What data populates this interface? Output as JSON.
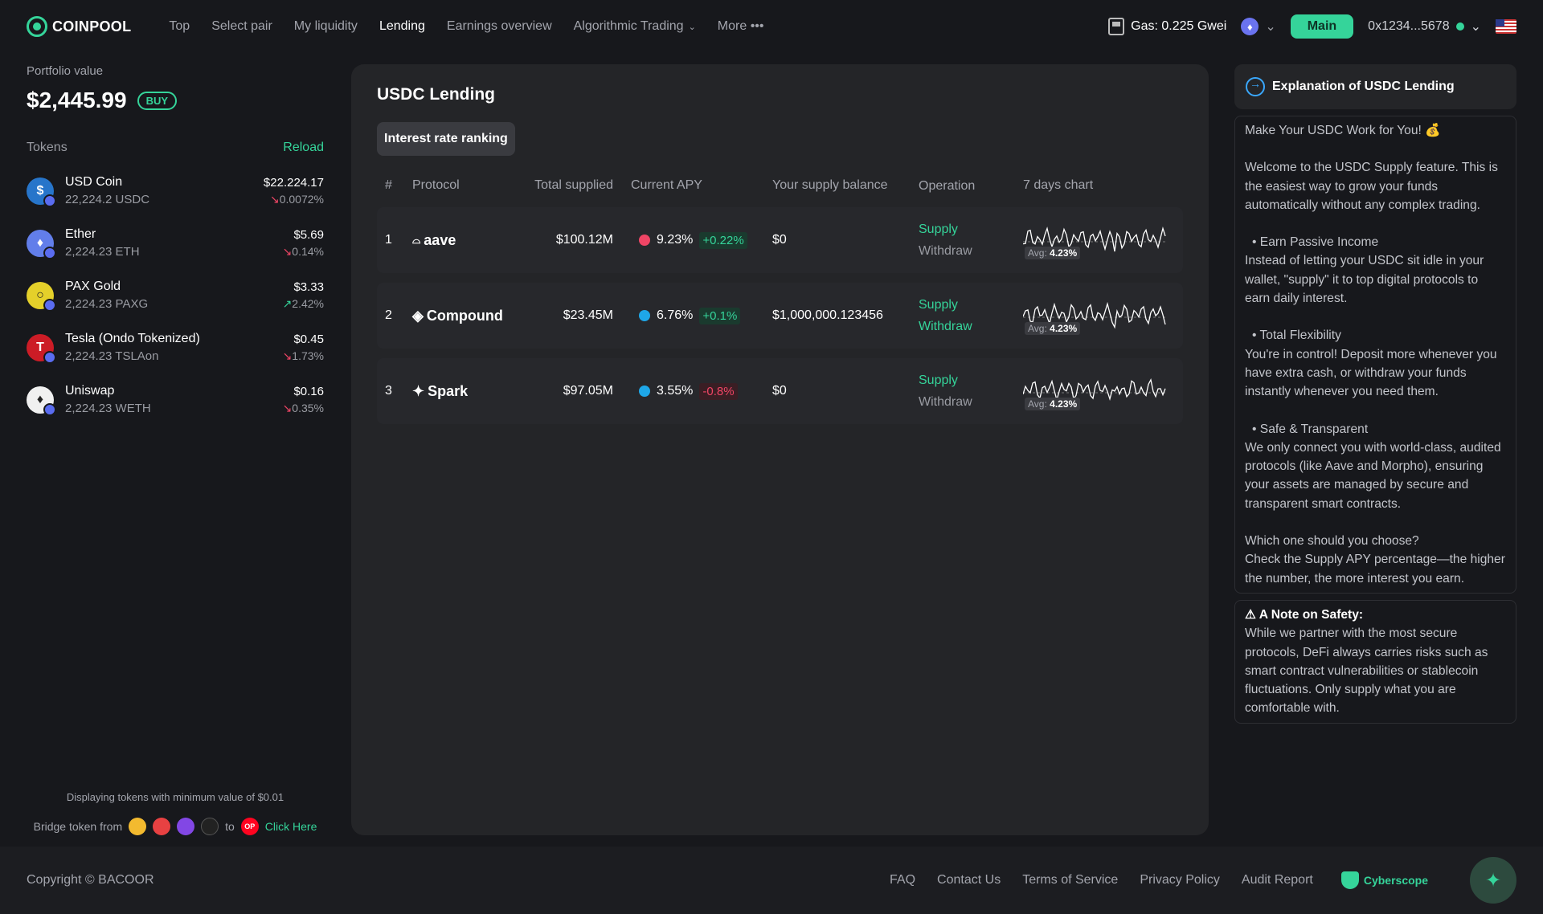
{
  "header": {
    "brand": "COINPOOL",
    "nav": [
      {
        "label": "Top"
      },
      {
        "label": "Select pair"
      },
      {
        "label": "My liquidity"
      },
      {
        "label": "Lending"
      },
      {
        "label": "Earnings overview"
      },
      {
        "label": "Algorithmic Trading"
      },
      {
        "label": "More"
      }
    ],
    "gas": "Gas: 0.225 Gwei",
    "network_label": "Main",
    "address": "0x1234...5678"
  },
  "sidebar": {
    "portfolio_label": "Portfolio value",
    "portfolio_value": "$2,445.99",
    "buy_label": "BUY",
    "tokens_label": "Tokens",
    "reload_label": "Reload",
    "tokens": [
      {
        "name": "USD Coin",
        "amount": "22,224.2 USDC",
        "price": "$22.224.17",
        "change": "0.0072%",
        "dir": "down",
        "color": "#2775ca",
        "glyph": "$"
      },
      {
        "name": "Ether",
        "amount": "2,224.23 ETH",
        "price": "$5.69",
        "change": "0.14%",
        "dir": "down",
        "color": "#627eea",
        "glyph": "♦"
      },
      {
        "name": "PAX Gold",
        "amount": "2,224.23 PAXG",
        "price": "$3.33",
        "change": "2.42%",
        "dir": "up",
        "color": "#e4d02a",
        "glyph": "○"
      },
      {
        "name": "Tesla (Ondo Tokenized)",
        "amount": "2,224.23 TSLAon",
        "price": "$0.45",
        "change": "1.73%",
        "dir": "down",
        "color": "#cc1c26",
        "glyph": "T"
      },
      {
        "name": "Uniswap",
        "amount": "2,224.23 WETH",
        "price": "$0.16",
        "change": "0.35%",
        "dir": "down",
        "color": "#f0f0f0",
        "glyph": "♦"
      }
    ],
    "min_value_note": "Displaying tokens with minimum value of $0.01",
    "bridge_from": "Bridge token from",
    "bridge_to": "to",
    "click_here": "Click Here",
    "op_badge": "OP"
  },
  "panel": {
    "title": "USDC Lending",
    "tab": "Interest rate ranking",
    "columns": [
      "#",
      "Protocol",
      "Total supplied",
      "Current APY",
      "Your supply balance",
      "Operation",
      "7 days chart"
    ],
    "rows": [
      {
        "rank": "1",
        "protocol": "aave",
        "total": "$100.12M",
        "apy": "9.23%",
        "apy_change": "+0.22%",
        "change_dir": "pos",
        "dot": "#ef4565",
        "balance": "$0",
        "supply": "Supply",
        "withdraw": "Withdraw",
        "avg_label": "Avg:",
        "avg": "4.23%"
      },
      {
        "rank": "2",
        "protocol": "Compound",
        "total": "$23.45M",
        "apy": "6.76%",
        "apy_change": "+0.1%",
        "change_dir": "pos",
        "dot": "#1ea7e8",
        "balance": "$1,000,000.123456",
        "supply": "Supply",
        "withdraw": "Withdraw",
        "avg_label": "Avg:",
        "avg": "4.23%"
      },
      {
        "rank": "3",
        "protocol": "Spark",
        "total": "$97.05M",
        "apy": "3.55%",
        "apy_change": "-0.8%",
        "change_dir": "neg",
        "dot": "#1ea7e8",
        "balance": "$0",
        "supply": "Supply",
        "withdraw": "Withdraw",
        "avg_label": "Avg:",
        "avg": "4.23%"
      }
    ]
  },
  "explain": {
    "title": "Explanation of USDC Lending",
    "intro": "Make Your USDC Work for You! 💰",
    "welcome": "Welcome to the USDC Supply feature. This is the easiest way to grow your funds automatically without any complex trading.",
    "b1_title": "• Earn Passive Income",
    "b1_text": "Instead of letting your USDC sit idle in your wallet, \"supply\" it to top digital protocols to earn daily interest.",
    "b2_title": "• Total Flexibility",
    "b2_text": "You're in control! Deposit more whenever you have extra cash, or withdraw your funds instantly whenever you need them.",
    "b3_title": "• Safe & Transparent",
    "b3_text": "We only connect you with world-class, audited protocols (like Aave and Morpho), ensuring your assets are managed by secure and transparent smart contracts.",
    "choose_title": "Which one should you choose?",
    "choose_text": "Check the Supply APY percentage—the higher the number, the more interest you earn.",
    "warn_title": "⚠ A Note on Safety:",
    "warn_text": "While we partner with the most secure protocols, DeFi always carries risks such as smart contract vulnerabilities or stablecoin fluctuations. Only supply what you are comfortable with."
  },
  "footer": {
    "copyright": "Copyright © BACOOR",
    "links": [
      "FAQ",
      "Contact Us",
      "Terms of Service",
      "Privacy Policy",
      "Audit Report"
    ],
    "cyberscope": "Cyberscope"
  }
}
